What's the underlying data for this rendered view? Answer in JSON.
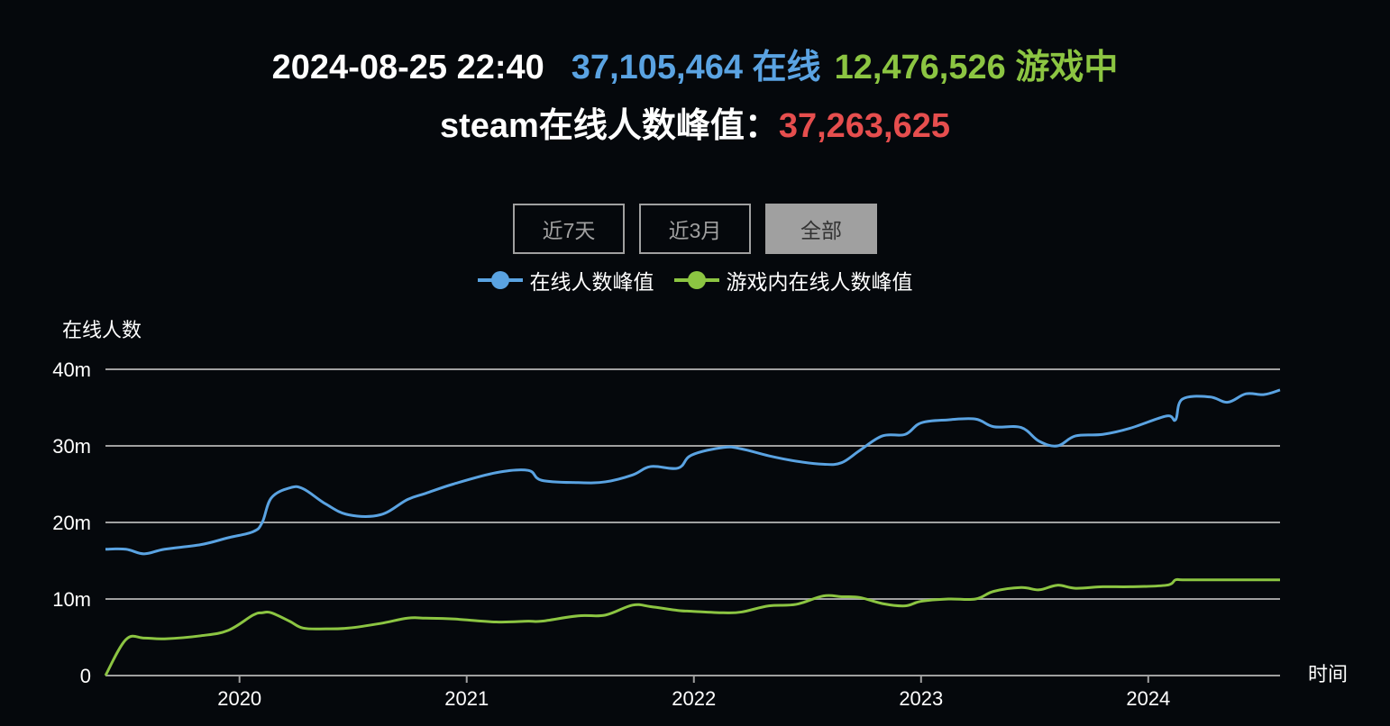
{
  "header": {
    "datetime": "2024-08-25 22:40",
    "online_value": "37,105,464",
    "online_label": "在线",
    "ingame_value": "12,476,526",
    "ingame_label": "游戏中",
    "peak_label": "steam在线人数峰值：",
    "peak_value": "37,263,625"
  },
  "colors": {
    "online": "#5aa3e2",
    "ingame": "#8cc542",
    "peak": "#e64e4e",
    "grid": "#a0a0a0",
    "background": "#05080c"
  },
  "range_buttons": [
    {
      "label": "近7天",
      "active": false
    },
    {
      "label": "近3月",
      "active": false
    },
    {
      "label": "全部",
      "active": true
    }
  ],
  "legend": [
    {
      "label": "在线人数峰值",
      "color": "#5aa3e2"
    },
    {
      "label": "游戏内在线人数峰值",
      "color": "#8cc542"
    }
  ],
  "chart_data": {
    "type": "line",
    "title": "",
    "xlabel": "时间",
    "ylabel": "在线人数",
    "ylim": [
      0,
      40000000
    ],
    "y_ticks": [
      "0",
      "10m",
      "20m",
      "30m",
      "40m"
    ],
    "x_ticks": [
      "2020",
      "2021",
      "2022",
      "2023",
      "2024"
    ],
    "x_range": [
      2019.41,
      2024.58
    ],
    "grid": true,
    "legend_position": "top",
    "x": [
      2019.41,
      2019.5,
      2019.58,
      2019.67,
      2019.83,
      2019.95,
      2020.06,
      2020.1,
      2020.14,
      2020.22,
      2020.28,
      2020.38,
      2020.48,
      2020.62,
      2020.74,
      2020.82,
      2020.94,
      2021.13,
      2021.27,
      2021.33,
      2021.49,
      2021.61,
      2021.73,
      2021.81,
      2021.93,
      2021.99,
      2022.13,
      2022.21,
      2022.33,
      2022.45,
      2022.57,
      2022.65,
      2022.73,
      2022.83,
      2022.93,
      2023.0,
      2023.12,
      2023.24,
      2023.32,
      2023.44,
      2023.52,
      2023.6,
      2023.68,
      2023.8,
      2023.92,
      2024.08,
      2024.12,
      2024.15,
      2024.27,
      2024.35,
      2024.43,
      2024.51,
      2024.58
    ],
    "series": [
      {
        "name": "在线人数峰值",
        "color": "#5aa3e2",
        "values": [
          16.5,
          16.5,
          15.9,
          16.5,
          17.1,
          18.0,
          18.8,
          20.0,
          23.2,
          24.5,
          24.4,
          22.4,
          21.0,
          21.0,
          23.0,
          23.8,
          25.0,
          26.5,
          26.8,
          25.5,
          25.2,
          25.3,
          26.2,
          27.3,
          27.1,
          28.8,
          29.8,
          29.6,
          28.7,
          28.0,
          27.6,
          27.8,
          29.4,
          31.3,
          31.5,
          33.0,
          33.4,
          33.5,
          32.5,
          32.4,
          30.6,
          30.0,
          31.3,
          31.5,
          32.3,
          33.9,
          33.4,
          36.1,
          36.4,
          35.7,
          36.8,
          36.7,
          37.3
        ]
      },
      {
        "name": "游戏内在线人数峰值",
        "color": "#8cc542",
        "values": [
          0,
          4.7,
          4.9,
          4.8,
          5.2,
          5.9,
          7.9,
          8.2,
          8.2,
          7.1,
          6.2,
          6.1,
          6.2,
          6.8,
          7.5,
          7.5,
          7.4,
          7.0,
          7.1,
          7.1,
          7.8,
          7.9,
          9.2,
          9.0,
          8.5,
          8.4,
          8.2,
          8.3,
          9.1,
          9.3,
          10.4,
          10.3,
          10.2,
          9.4,
          9.1,
          9.7,
          10.0,
          10.0,
          11.0,
          11.5,
          11.2,
          11.8,
          11.4,
          11.6,
          11.6,
          11.8,
          12.5,
          12.5,
          12.5,
          12.5,
          12.5,
          12.5,
          12.5
        ]
      }
    ]
  }
}
